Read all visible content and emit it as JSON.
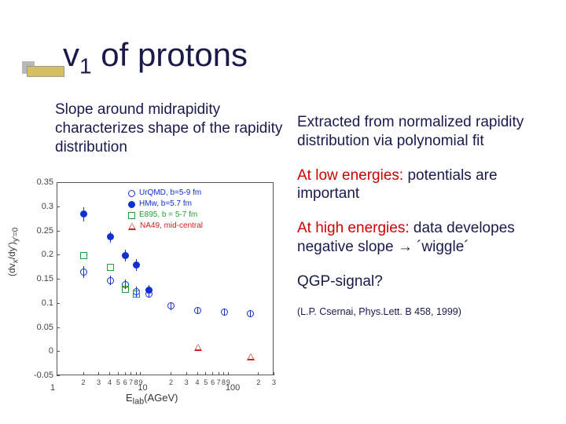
{
  "title_html": "v<sub>1</sub> of protons",
  "subtitle": "Slope around midrapidity characterizes shape of the rapidity distribution",
  "paragraphs": {
    "p1": "Extracted from normalized rapidity distribution via polynomial fit",
    "p2_red": "At low energies:",
    "p2_rest": "potentials are important",
    "p3_red": "At high energies:",
    "p3_rest": "data developes negative slope → ´wiggle´",
    "p4": "QGP-signal?"
  },
  "citation": "(L.P. Csernai,  Phys.Lett. B 458, 1999)",
  "chart": {
    "type": "scatter",
    "xlabel": "E_lab (AGeV)",
    "ylabel_html": "(dv_x/dy')_y'=0",
    "xscale": "log",
    "xlim": [
      1,
      300
    ],
    "ylim": [
      -0.05,
      0.35
    ],
    "yticks": [
      -0.05,
      0,
      0.05,
      0.1,
      0.15,
      0.2,
      0.25,
      0.3,
      0.35
    ],
    "xticks_major": [
      10,
      100
    ],
    "xticks_exp": [
      "2",
      "3",
      "4",
      "5",
      "6",
      "7",
      "8",
      "9",
      "2"
    ],
    "background": "#ffffff",
    "axis_color": "#555555",
    "legend": [
      {
        "label": "UrQMD, b=5-9 fm",
        "marker": "circle-open",
        "color": "#1030d0"
      },
      {
        "label": "HMw, b=5.7 fm",
        "marker": "circle-fill",
        "color": "#1030d0"
      },
      {
        "label": "E895, b = 5-7 fm",
        "marker": "square-open",
        "color": "#20a030"
      },
      {
        "label": "NA49, mid-central",
        "marker": "tri-open",
        "color": "#d02020"
      }
    ],
    "series": {
      "urqmd": {
        "marker": "circle-open",
        "color": "#1030d0",
        "points": [
          {
            "x": 2,
            "y": 0.165,
            "err": 0.012
          },
          {
            "x": 4,
            "y": 0.148,
            "err": 0.01
          },
          {
            "x": 6,
            "y": 0.14,
            "err": 0.01
          },
          {
            "x": 8,
            "y": 0.125,
            "err": 0.01
          },
          {
            "x": 11,
            "y": 0.12,
            "err": 0.008
          },
          {
            "x": 20,
            "y": 0.095,
            "err": 0.008
          },
          {
            "x": 40,
            "y": 0.085,
            "err": 0.007
          },
          {
            "x": 80,
            "y": 0.083,
            "err": 0.007
          },
          {
            "x": 160,
            "y": 0.08,
            "err": 0.007
          }
        ]
      },
      "hmw": {
        "marker": "circle-fill",
        "color": "#1030d0",
        "points": [
          {
            "x": 2,
            "y": 0.285,
            "err": 0.015
          },
          {
            "x": 4,
            "y": 0.238,
            "err": 0.012
          },
          {
            "x": 6,
            "y": 0.2,
            "err": 0.012
          },
          {
            "x": 8,
            "y": 0.18,
            "err": 0.012
          },
          {
            "x": 11,
            "y": 0.128,
            "err": 0.01
          }
        ]
      },
      "e895": {
        "marker": "square-open",
        "color": "#20a030",
        "points": [
          {
            "x": 2,
            "y": 0.2
          },
          {
            "x": 4,
            "y": 0.175
          },
          {
            "x": 6,
            "y": 0.13
          },
          {
            "x": 8,
            "y": 0.12
          }
        ]
      },
      "na49": {
        "marker": "tri-open",
        "color": "#d02020",
        "points": [
          {
            "x": 40,
            "y": 0.01
          },
          {
            "x": 160,
            "y": -0.01
          }
        ]
      }
    }
  }
}
